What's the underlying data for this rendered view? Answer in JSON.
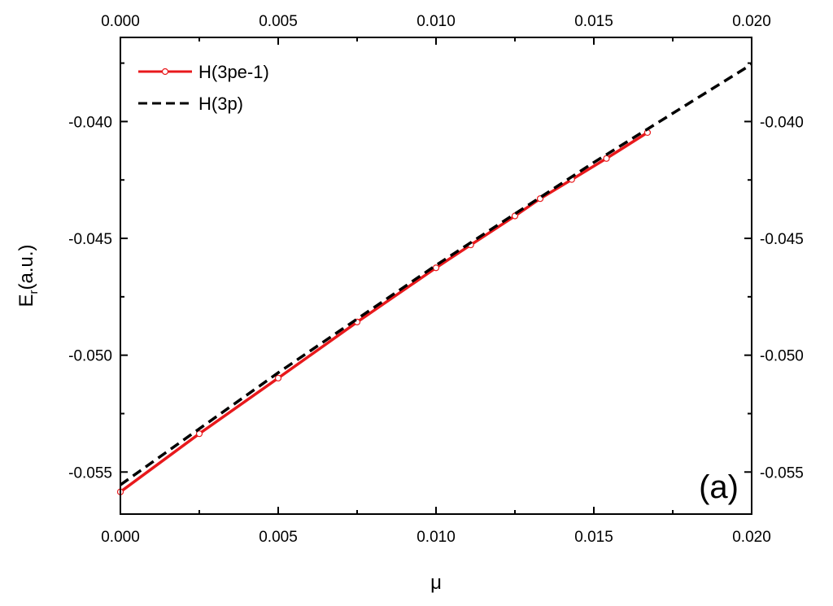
{
  "chart_data": {
    "type": "line",
    "xlabel": "μ",
    "ylabel": "E",
    "ylabel_subscript": "r",
    "ylabel_suffix": "(a.u.)",
    "xlim": [
      0.0,
      0.02
    ],
    "ylim": [
      -0.0568,
      -0.0364
    ],
    "x_ticks": [
      {
        "value": 0.0,
        "label": "0.000"
      },
      {
        "value": 0.005,
        "label": "0.005"
      },
      {
        "value": 0.01,
        "label": "0.010"
      },
      {
        "value": 0.015,
        "label": "0.015"
      },
      {
        "value": 0.02,
        "label": "0.020"
      }
    ],
    "y_ticks": [
      {
        "value": -0.055,
        "label": "-0.055"
      },
      {
        "value": -0.05,
        "label": "-0.050"
      },
      {
        "value": -0.045,
        "label": "-0.045"
      },
      {
        "value": -0.04,
        "label": "-0.040"
      }
    ],
    "x_minor_step": 0.0025,
    "y_minor_step": 0.0025,
    "grid": false,
    "legend_position": "top-left",
    "annotation": "(a)",
    "series": [
      {
        "name": "H(3pe-1)",
        "color": "#e8191c",
        "style": "solid-with-open-circles",
        "x": [
          0.0,
          0.0025,
          0.005,
          0.0075,
          0.01,
          0.0111,
          0.0125,
          0.0133,
          0.0143,
          0.0154,
          0.0167
        ],
        "y": [
          -0.05585,
          -0.05336,
          -0.05098,
          -0.04858,
          -0.04626,
          -0.04528,
          -0.04404,
          -0.0433,
          -0.04248,
          -0.04158,
          -0.04047
        ]
      },
      {
        "name": "H(3p)",
        "color": "#000000",
        "style": "dashed",
        "x": [
          0.0,
          0.005,
          0.01,
          0.015,
          0.02
        ],
        "y": [
          -0.05555,
          -0.05075,
          -0.04615,
          -0.04175,
          -0.03755
        ]
      }
    ]
  }
}
